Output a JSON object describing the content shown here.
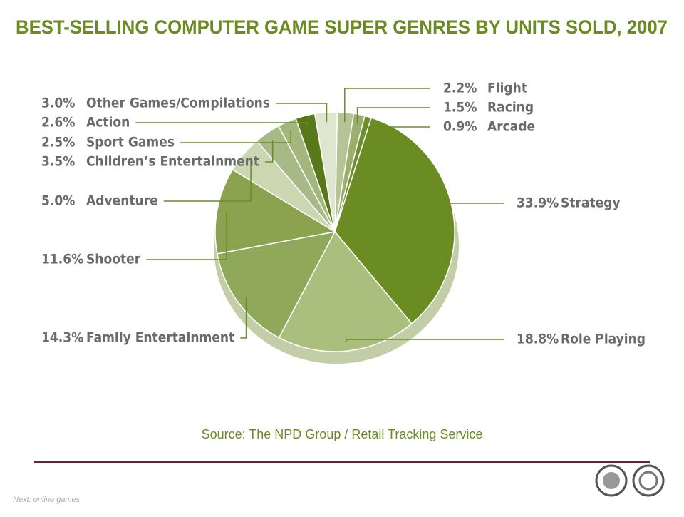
{
  "chart_data": {
    "type": "pie",
    "title": "BEST-SELLING COMPUTER GAME SUPER GENRES BY UNITS SOLD, 2007",
    "categories": [
      "Flight",
      "Racing",
      "Arcade",
      "Strategy",
      "Role Playing",
      "Family Entertainment",
      "Shooter",
      "Adventure",
      "Children’s Entertainment",
      "Sport Games",
      "Action",
      "Other Games/Compilations"
    ],
    "values": [
      2.2,
      1.5,
      0.9,
      33.9,
      18.8,
      14.3,
      11.6,
      5.0,
      3.5,
      2.5,
      2.6,
      3.0
    ],
    "value_labels": [
      "2.2%",
      "1.5%",
      "0.9%",
      "33.9%",
      "18.8%",
      "14.3%",
      "11.6%",
      "5.0%",
      "3.5%",
      "2.5%",
      "2.6%",
      "3.0%"
    ],
    "colors": [
      "#b5c495",
      "#9bb06e",
      "#6f8f2a",
      "#6b8c22",
      "#aabf7e",
      "#8fa85a",
      "#8ba24f",
      "#ccd6b0",
      "#a6b986",
      "#a3b67c",
      "#58781a",
      "#dfe5cf"
    ],
    "source": "Source: The NPD Group / Retail Tracking Service"
  },
  "footer": "Next: online games"
}
